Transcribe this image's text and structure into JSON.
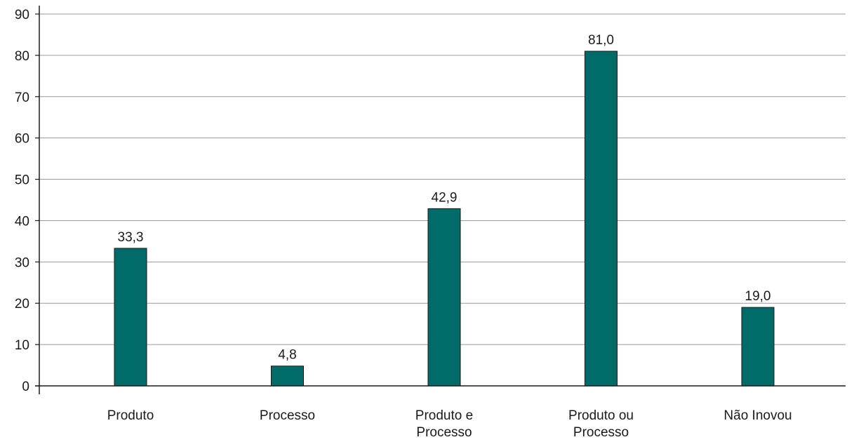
{
  "chart_data": {
    "type": "bar",
    "categories": [
      [
        "Produto"
      ],
      [
        "Processo"
      ],
      [
        "Produto e",
        "Processo"
      ],
      [
        "Produto ou",
        "Processo"
      ],
      [
        "Não Inovou"
      ]
    ],
    "values": [
      33.3,
      4.8,
      42.9,
      81.0,
      19.0
    ],
    "value_labels": [
      "33,3",
      "4,8",
      "42,9",
      "81,0",
      "19,0"
    ],
    "ylim": [
      0,
      90
    ],
    "yticks": [
      0,
      10,
      20,
      30,
      40,
      50,
      60,
      70,
      80,
      90
    ],
    "grid": true,
    "title": "",
    "xlabel": "",
    "ylabel": "",
    "bar_color": "#006b68",
    "bar_outline_color": "#1a1a1a",
    "grid_color": "#9a9a9a",
    "axis_color": "#1a1a1a"
  }
}
